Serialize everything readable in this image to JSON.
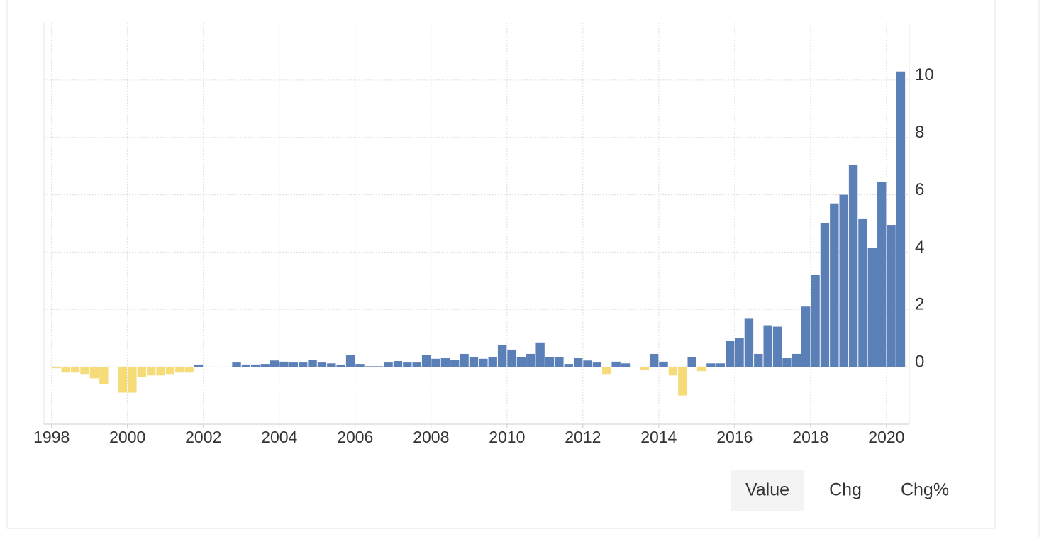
{
  "chart_data": {
    "type": "bar",
    "x": [
      1998,
      1998.25,
      1998.5,
      1998.75,
      1999,
      1999.25,
      1999.5,
      1999.75,
      2000,
      2000.25,
      2000.5,
      2000.75,
      2001,
      2001.25,
      2001.5,
      2001.75,
      2002,
      2002.25,
      2002.5,
      2002.75,
      2003,
      2003.25,
      2003.5,
      2003.75,
      2004,
      2004.25,
      2004.5,
      2004.75,
      2005,
      2005.25,
      2005.5,
      2005.75,
      2006,
      2006.25,
      2006.5,
      2006.75,
      2007,
      2007.25,
      2007.5,
      2007.75,
      2008,
      2008.25,
      2008.5,
      2008.75,
      2009,
      2009.25,
      2009.5,
      2009.75,
      2010,
      2010.25,
      2010.5,
      2010.75,
      2011,
      2011.25,
      2011.5,
      2011.75,
      2012,
      2012.25,
      2012.5,
      2012.75,
      2013,
      2013.25,
      2013.5,
      2013.75,
      2014,
      2014.25,
      2014.5,
      2014.75,
      2015,
      2015.25,
      2015.5,
      2015.75,
      2016,
      2016.25,
      2016.5,
      2016.75,
      2017,
      2017.25,
      2017.5,
      2017.75,
      2018,
      2018.25,
      2018.5,
      2018.75,
      2019,
      2019.25,
      2019.5,
      2019.75,
      2020,
      2020.25
    ],
    "values": [
      -0.05,
      -0.2,
      -0.2,
      -0.25,
      -0.4,
      -0.6,
      0,
      -0.9,
      -0.9,
      -0.35,
      -0.3,
      -0.3,
      -0.25,
      -0.2,
      -0.2,
      0.08,
      0,
      0,
      0,
      0.15,
      0.08,
      0.08,
      0.1,
      0.22,
      0.18,
      0.15,
      0.15,
      0.25,
      0.15,
      0.12,
      0.08,
      0.4,
      0.1,
      0.02,
      0.02,
      0.15,
      0.2,
      0.15,
      0.15,
      0.4,
      0.28,
      0.3,
      0.25,
      0.45,
      0.35,
      0.28,
      0.35,
      0.75,
      0.6,
      0.35,
      0.45,
      0.85,
      0.35,
      0.35,
      0.1,
      0.3,
      0.22,
      0.15,
      -0.25,
      0.18,
      0.12,
      0,
      -0.1,
      0.45,
      0.18,
      -0.3,
      -1.0,
      0.35,
      -0.15,
      0.12,
      0.12,
      0.9,
      1.0,
      1.7,
      0.45,
      1.45,
      1.4,
      0.3,
      0.45,
      2.1,
      3.2,
      5.0,
      5.7,
      6.0,
      7.05,
      5.15,
      4.15,
      6.45,
      4.95,
      10.3
    ],
    "color": "#5b80b8",
    "negative_color": "#f5dc78",
    "xlim": [
      1997.8,
      2020.6
    ],
    "xticks": [
      1998,
      2000,
      2002,
      2004,
      2006,
      2008,
      2010,
      2012,
      2014,
      2016,
      2018,
      2020
    ],
    "ylim": [
      -2,
      12
    ],
    "yticks": [
      0,
      2,
      4,
      6,
      8,
      10
    ],
    "grid": true
  },
  "buttons": [
    {
      "label": "Value",
      "active": true
    },
    {
      "label": "Chg",
      "active": false
    },
    {
      "label": "Chg%",
      "active": false
    }
  ]
}
